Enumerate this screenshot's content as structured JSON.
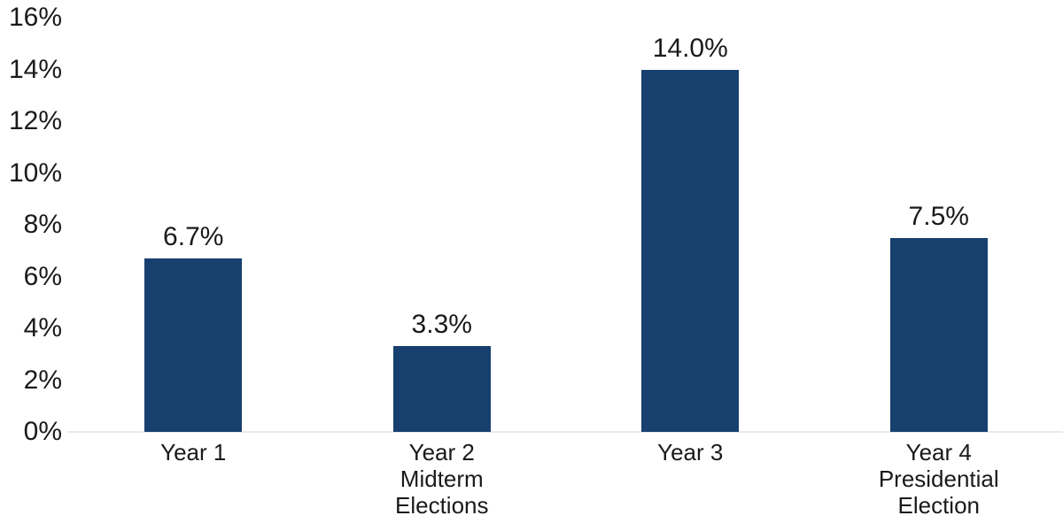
{
  "chart_data": {
    "type": "bar",
    "title": "",
    "xlabel": "",
    "ylabel": "",
    "categories": [
      "Year 1",
      "Year 2\nMidterm\nElections",
      "Year 3",
      "Year 4\nPresidential\nElection"
    ],
    "values": [
      6.7,
      3.3,
      14.0,
      7.5
    ],
    "bar_labels": [
      "6.7%",
      "3.3%",
      "14.0%",
      "7.5%"
    ],
    "y_ticks": [
      0,
      2,
      4,
      6,
      8,
      10,
      12,
      14,
      16
    ],
    "y_tick_labels": [
      "0%",
      "2%",
      "4%",
      "6%",
      "8%",
      "10%",
      "12%",
      "14%",
      "16%"
    ],
    "ylim": [
      0,
      16
    ],
    "grid": false,
    "legend": false,
    "colors": {
      "bar": "#17406f",
      "axis_line": "#e9e9e9",
      "text": "#1a1a1a",
      "background": "#ffffff"
    }
  }
}
